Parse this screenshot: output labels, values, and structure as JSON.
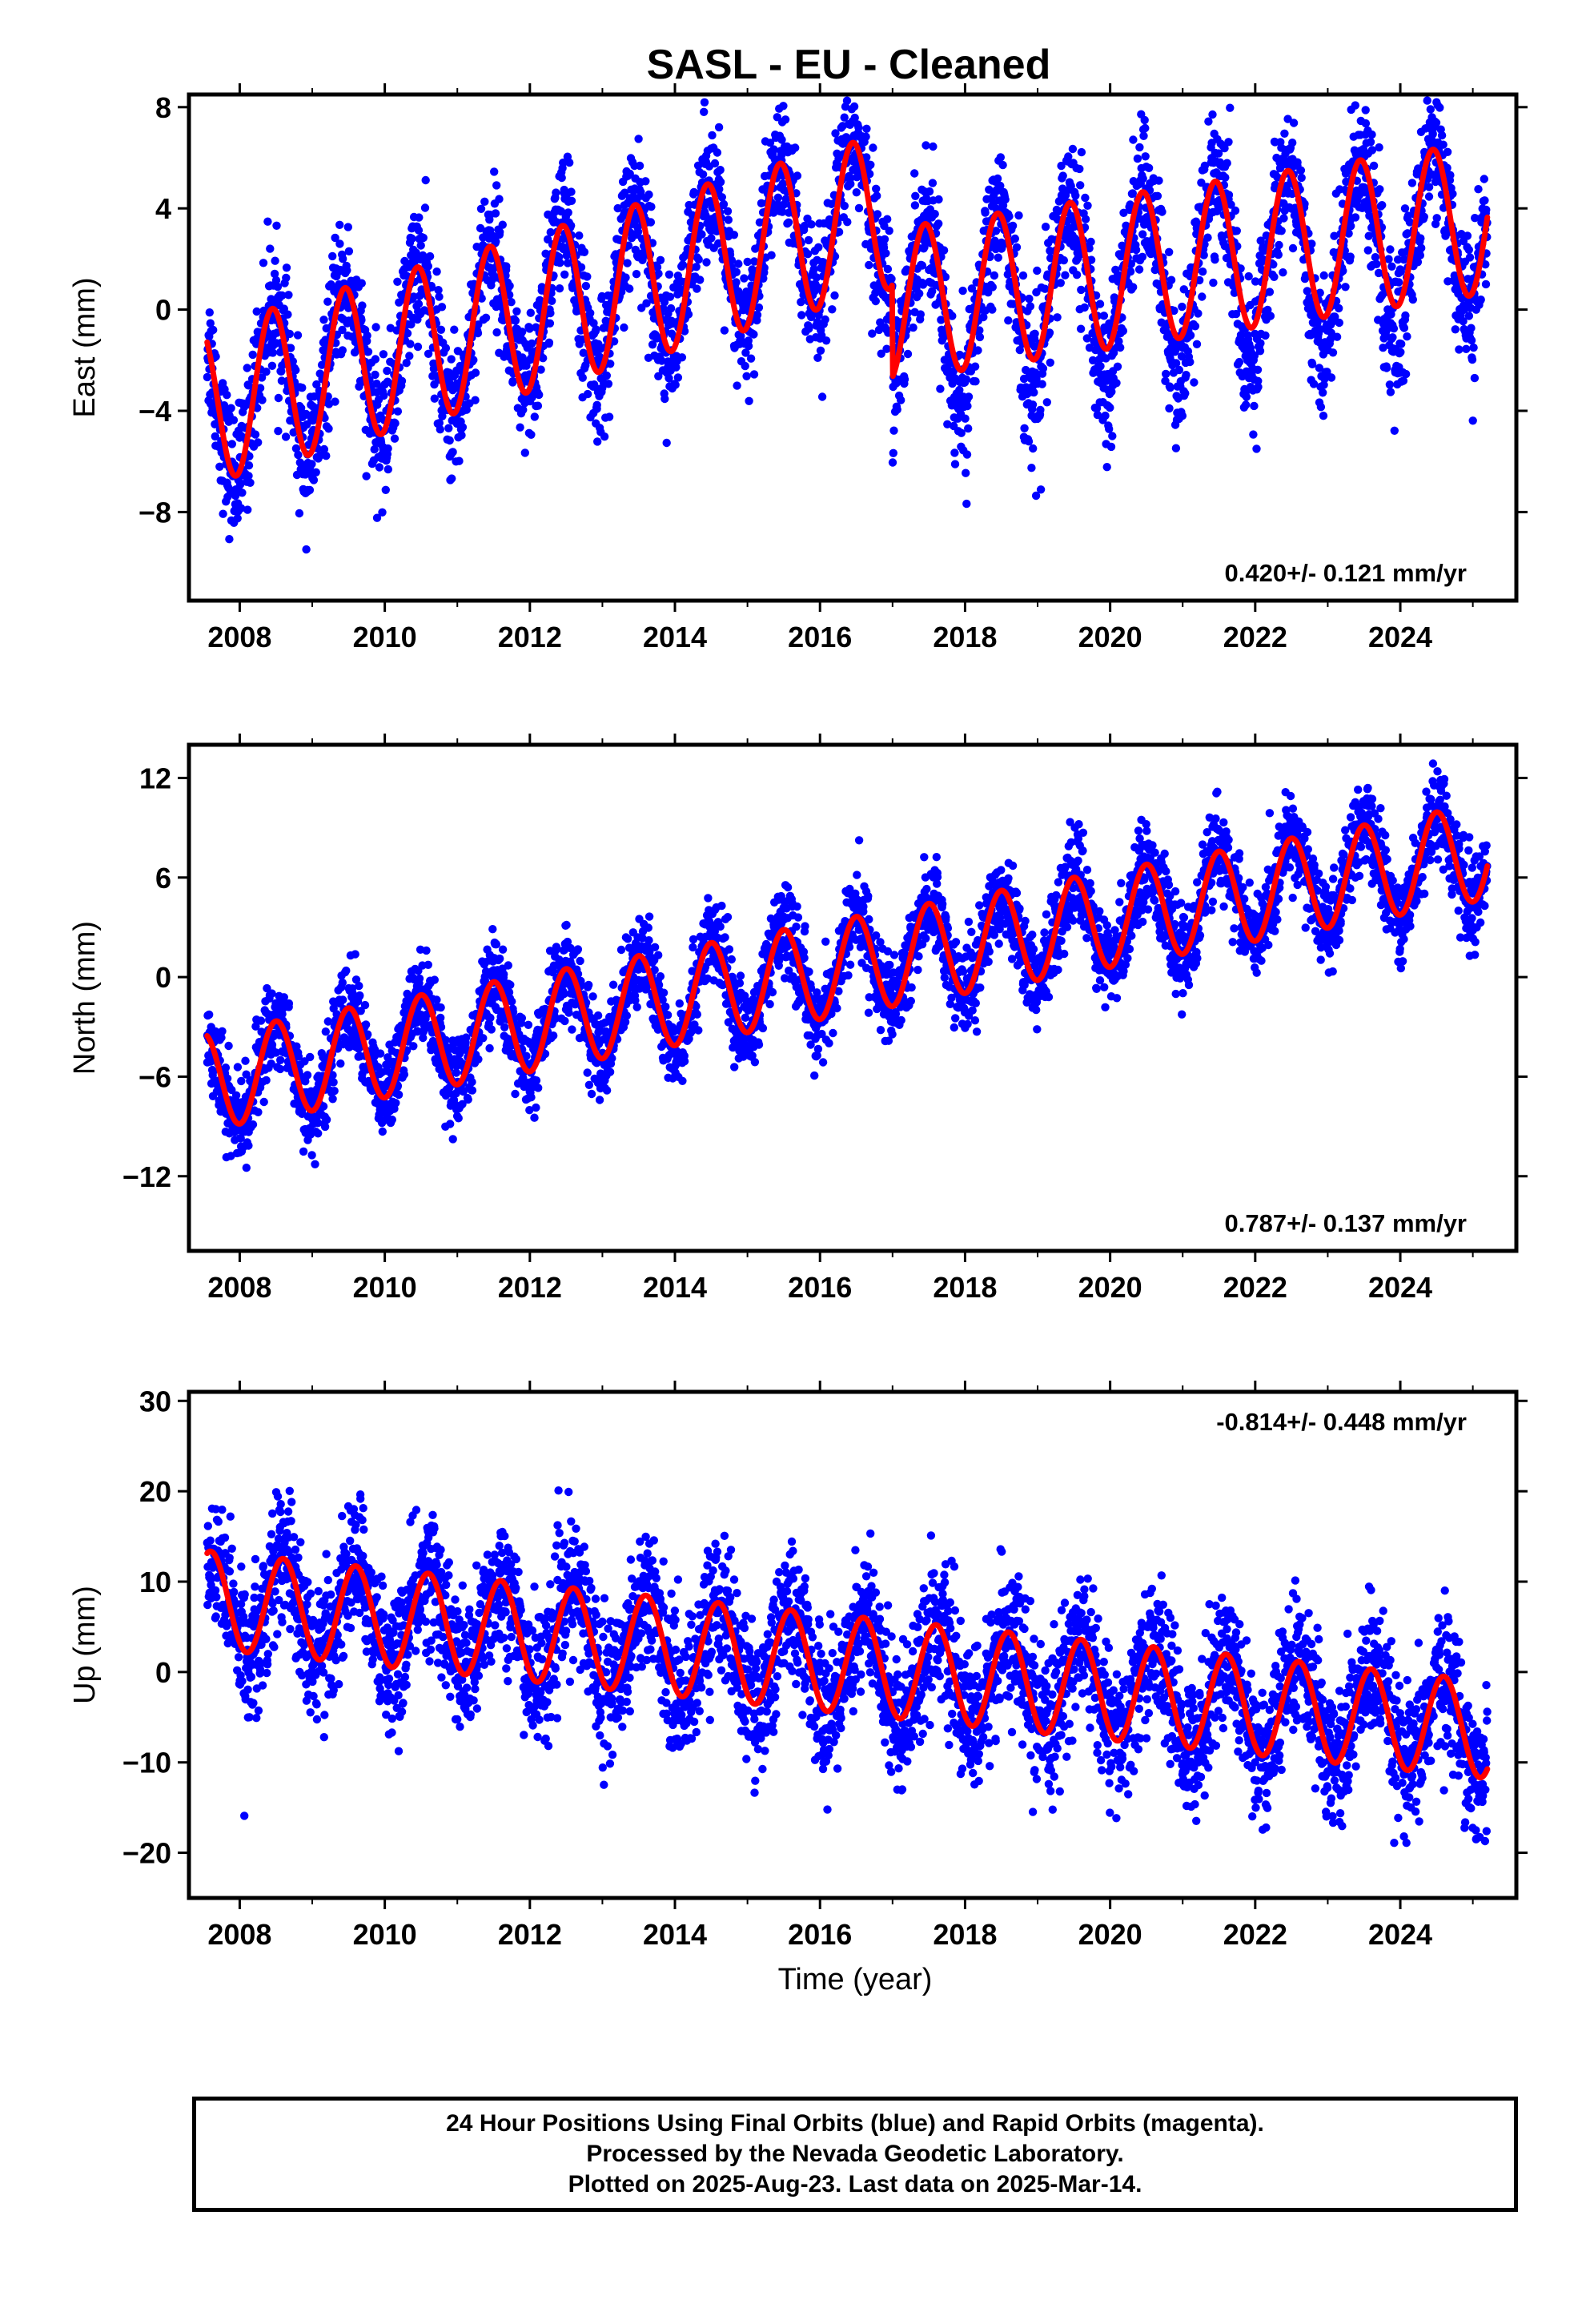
{
  "title": "SASL  - EU - Cleaned",
  "x_axis_label": "Time (year)",
  "footer": {
    "line1": "24 Hour Positions Using Final Orbits (blue) and Rapid Orbits (magenta).",
    "line2": "Processed by the Nevada Geodetic Laboratory.",
    "line3": "Plotted on 2025-Aug-23. Last data on 2025-Mar-14."
  },
  "colors": {
    "data_points": "#0000ff",
    "fit_line": "#ff0000",
    "frame": "#000000"
  },
  "chart_data": [
    {
      "type": "scatter",
      "panel": "east",
      "ylabel": "East (mm)",
      "xlim": [
        2007.3,
        2025.6
      ],
      "ylim": [
        -11.5,
        8.5
      ],
      "yticks": [
        -8,
        -4,
        0,
        4,
        8
      ],
      "ytick_labels": [
        "−8",
        "−4",
        "0",
        "4",
        "8"
      ],
      "xticks": [
        2008,
        2010,
        2012,
        2014,
        2016,
        2018,
        2020,
        2022,
        2024
      ],
      "xtick_labels": [
        "2008",
        "2010",
        "2012",
        "2014",
        "2016",
        "2018",
        "2020",
        "2022",
        "2024"
      ],
      "rate_label": "0.420+/- 0.121 mm/yr",
      "rate_label_position": "bottom-right",
      "data_range": [
        2007.55,
        2025.2
      ],
      "fit": {
        "segments": [
          {
            "x0": 2007.55,
            "x1": 2017.0,
            "y_at_2007_55": -3.8,
            "slope": 0.82,
            "amplitude": 3.1,
            "peak_phase": 0.45
          },
          {
            "x0": 2017.0,
            "x1": 2025.2,
            "y_at_2017_0": 0.2,
            "slope": 0.42,
            "amplitude": 3.0,
            "peak_phase": 0.45
          }
        ]
      },
      "scatter_sigma": 1.3
    },
    {
      "type": "scatter",
      "panel": "north",
      "ylabel": "North (mm)",
      "xlim": [
        2007.3,
        2025.6
      ],
      "ylim": [
        -16.5,
        14
      ],
      "yticks": [
        -12,
        -6,
        0,
        6,
        12
      ],
      "ytick_labels": [
        "−12",
        "−6",
        "0",
        "6",
        "12"
      ],
      "xticks": [
        2008,
        2010,
        2012,
        2014,
        2016,
        2018,
        2020,
        2022,
        2024
      ],
      "xtick_labels": [
        "2008",
        "2010",
        "2012",
        "2014",
        "2016",
        "2018",
        "2020",
        "2022",
        "2024"
      ],
      "rate_label": "0.787+/- 0.137 mm/yr",
      "rate_label_position": "bottom-right",
      "data_range": [
        2007.55,
        2025.2
      ],
      "fit": {
        "segments": [
          {
            "x0": 2007.55,
            "x1": 2025.2,
            "y_at_2007_55": -6.3,
            "slope": 0.787,
            "amplitude": 2.9,
            "peak_phase": 0.5
          }
        ]
      },
      "scatter_sigma": 1.3
    },
    {
      "type": "scatter",
      "panel": "up",
      "ylabel": "Up (mm)",
      "xlim": [
        2007.3,
        2025.6
      ],
      "ylim": [
        -25,
        31
      ],
      "yticks": [
        -20,
        -10,
        0,
        10,
        20,
        30
      ],
      "ytick_labels": [
        "−20",
        "−10",
        "0",
        "10",
        "20",
        "30"
      ],
      "xticks": [
        2008,
        2010,
        2012,
        2014,
        2016,
        2018,
        2020,
        2022,
        2024
      ],
      "xtick_labels": [
        "2008",
        "2010",
        "2012",
        "2014",
        "2016",
        "2018",
        "2020",
        "2022",
        "2024"
      ],
      "rate_label": "-0.814+/- 0.448 mm/yr",
      "rate_label_position": "top-right",
      "data_range": [
        2007.55,
        2025.2
      ],
      "fit": {
        "segments": [
          {
            "x0": 2007.55,
            "x1": 2025.2,
            "y_at_2007_55": 8.0,
            "slope": -0.814,
            "amplitude": 5.4,
            "peak_phase": 0.6
          }
        ]
      },
      "scatter_sigma": 3.8
    }
  ]
}
